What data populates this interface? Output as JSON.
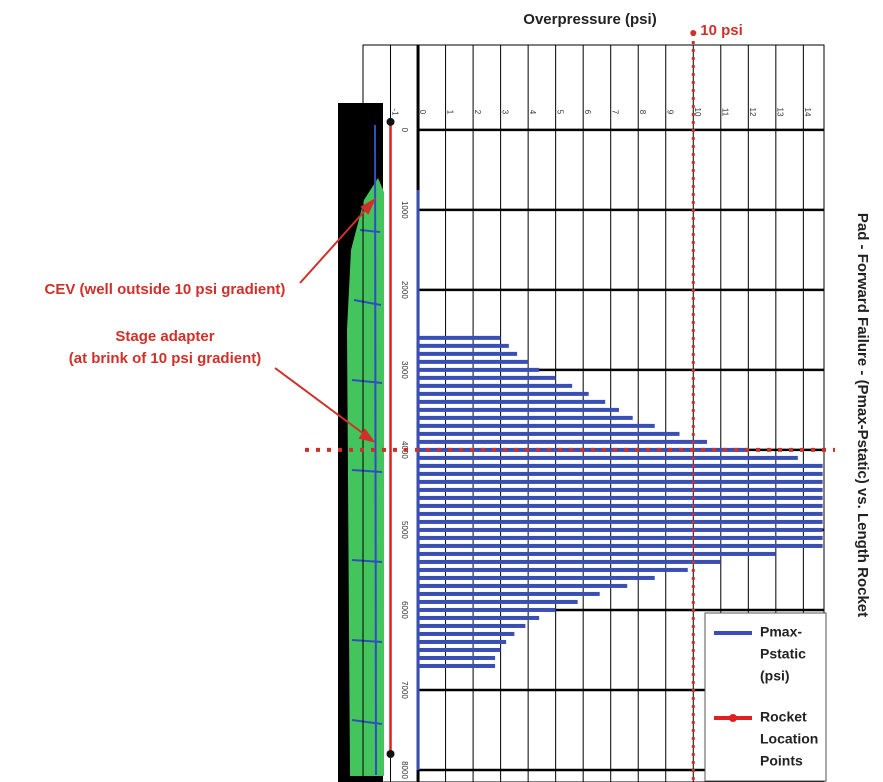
{
  "chart_data": {
    "type": "hbar",
    "title": "Pad - Forward Failure - (Pmax-Pstatic) vs. Length Rocket",
    "x_label": "Overpressure (psi)",
    "xlim": [
      -2,
      14.75
    ],
    "xticks": [
      -1,
      0,
      1,
      2,
      3,
      4,
      5,
      6,
      7,
      8,
      9,
      10,
      11,
      12,
      13,
      14
    ],
    "ylim": [
      -1060,
      8150
    ],
    "yticks": [
      0,
      1000,
      2000,
      3000,
      4000,
      5000,
      6000,
      7000,
      8000
    ],
    "grid": true,
    "reference_x": {
      "value": 10,
      "label": "10 psi",
      "color": "#d0302a"
    },
    "reference_y": {
      "value": 4000,
      "color": "#d0302a"
    },
    "annotations": [
      "CEV (well outside 10 psi gradient)",
      "Stage adapter",
      "(at brink of 10 psi gradient)"
    ],
    "series": [
      {
        "name": [
          "Pmax-",
          "Pstatic",
          "(psi)"
        ],
        "color": "#3a4fb5",
        "y": [
          2600,
          2700,
          2800,
          2900,
          3000,
          3100,
          3200,
          3300,
          3400,
          3500,
          3600,
          3700,
          3800,
          3900,
          4000,
          4100,
          4200,
          4300,
          4400,
          4500,
          4600,
          4700,
          4800,
          4900,
          5000,
          5100,
          5200,
          5300,
          5400,
          5500,
          5600,
          5700,
          5800,
          5900,
          6000,
          6100,
          6200,
          6300,
          6400,
          6500,
          6600,
          6700
        ],
        "values": [
          3.0,
          3.3,
          3.6,
          4.0,
          4.4,
          5.0,
          5.6,
          6.2,
          6.8,
          7.3,
          7.8,
          8.6,
          9.5,
          10.5,
          12.0,
          13.8,
          14.7,
          14.7,
          14.7,
          14.7,
          14.7,
          14.7,
          14.7,
          14.7,
          14.7,
          14.7,
          14.7,
          13.0,
          11.0,
          9.8,
          8.6,
          7.6,
          6.6,
          5.8,
          5.0,
          4.4,
          3.9,
          3.5,
          3.2,
          3.0,
          2.8,
          2.8
        ]
      },
      {
        "name": [
          "Rocket",
          "Location",
          "Points"
        ],
        "color": "#e02020",
        "x": [
          -1,
          -1
        ],
        "y": [
          -100,
          7800
        ]
      }
    ]
  }
}
